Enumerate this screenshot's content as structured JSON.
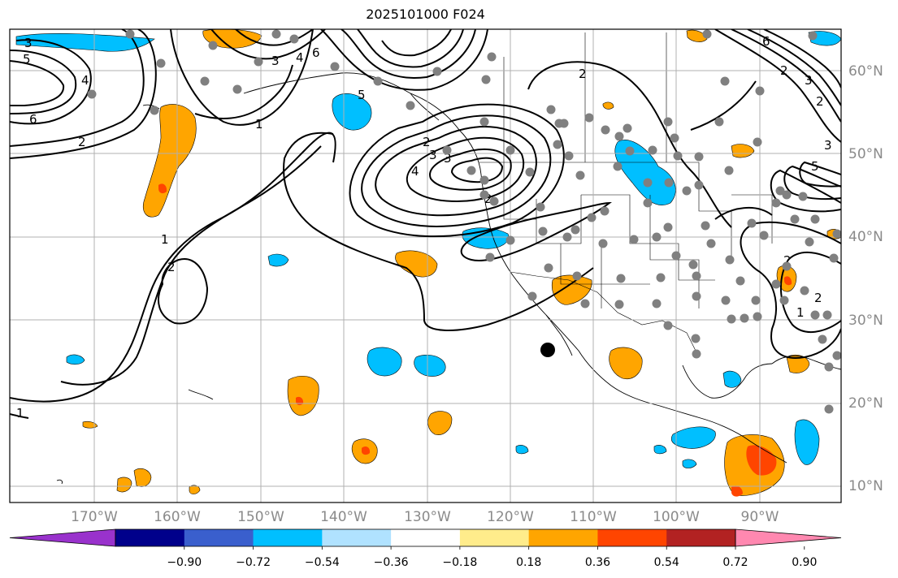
{
  "title": "2025101000 F024",
  "lon_labels": [
    "170°W",
    "160°W",
    "150°W",
    "140°W",
    "130°W",
    "120°W",
    "110°W",
    "100°W",
    "90°W"
  ],
  "lat_labels": [
    "60°N",
    "50°N",
    "40°N",
    "30°N",
    "20°N",
    "10°N"
  ],
  "colorbar": {
    "ticks": [
      "−0.90",
      "−0.72",
      "−0.54",
      "−0.36",
      "−0.18",
      "0.18",
      "0.36",
      "0.54",
      "0.72",
      "0.90"
    ],
    "colors": [
      "#9932cc",
      "#00008b",
      "#3a5fcd",
      "#00bfff",
      "#b0e2ff",
      "#ffffff",
      "#ffec8b",
      "#ffa500",
      "#ff4500",
      "#b22222",
      "#ff88b0"
    ]
  },
  "contour_labels": [
    "3",
    "5",
    "4",
    "6",
    "2",
    "1",
    "6",
    "4",
    "3",
    "2",
    "3",
    "4",
    "5",
    "3",
    "2",
    "1",
    "2",
    "2",
    "1",
    "2",
    "5",
    "3",
    "2",
    "2",
    "1",
    "6",
    "3",
    "2"
  ],
  "colors": {
    "negative_fill": "#00bfff",
    "positive_fill": "#ffa500",
    "strong_positive_fill": "#ff4500",
    "station": "#808080",
    "grid": "#b0b0b0"
  }
}
